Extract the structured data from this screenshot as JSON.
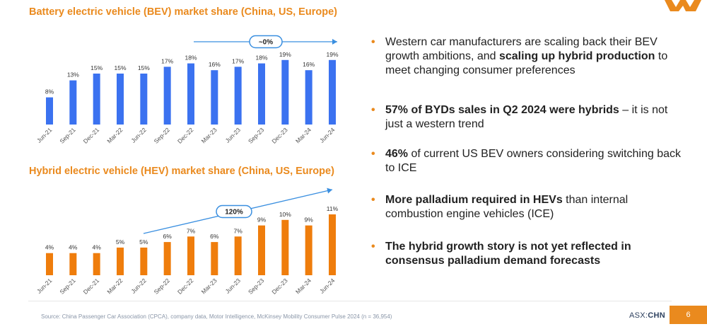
{
  "colors": {
    "bev_bar": "#3b72f0",
    "hev_bar": "#ef7d0c",
    "accent": "#ea8a1e",
    "arrow": "#3a8fe0"
  },
  "chart_data": [
    {
      "type": "bar",
      "title": "Battery electric vehicle (BEV) market share (China, US, Europe)",
      "categories": [
        "Jun-21",
        "Sep-21",
        "Dec-21",
        "Mar-22",
        "Jun-22",
        "Sep-22",
        "Dec-22",
        "Mar-23",
        "Jun-23",
        "Sep-23",
        "Dec-23",
        "Mar-24",
        "Jun-24"
      ],
      "values": [
        8,
        13,
        15,
        15,
        15,
        17,
        18,
        16,
        17,
        18,
        19,
        16,
        19
      ],
      "data_labels": [
        "8%",
        "13%",
        "15%",
        "15%",
        "15%",
        "17%",
        "18%",
        "16%",
        "17%",
        "18%",
        "19%",
        "16%",
        "19%"
      ],
      "annotation": "~0%",
      "ylim": [
        0,
        20
      ],
      "grid": false
    },
    {
      "type": "bar",
      "title": "Hybrid electric vehicle (HEV) market share (China, US, Europe)",
      "categories": [
        "Jun-21",
        "Sep-21",
        "Dec-21",
        "Mar-22",
        "Jun-22",
        "Sep-22",
        "Dec-22",
        "Mar-23",
        "Jun-23",
        "Sep-23",
        "Dec-23",
        "Mar-24",
        "Jun-24"
      ],
      "values": [
        4,
        4,
        4,
        5,
        5,
        6,
        7,
        6,
        7,
        9,
        10,
        9,
        11
      ],
      "data_labels": [
        "4%",
        "4%",
        "4%",
        "5%",
        "5%",
        "6%",
        "7%",
        "6%",
        "7%",
        "9%",
        "10%",
        "9%",
        "11%"
      ],
      "annotation": "120%",
      "ylim": [
        0,
        11
      ],
      "grid": false
    }
  ],
  "bullets": [
    {
      "pre": "Western car manufacturers are scaling back their BEV growth ambitions, and ",
      "bold": "scaling up hybrid production",
      "post": " to meet changing consumer preferences"
    },
    {
      "pre": "",
      "bold": "57% of BYDs sales in Q2 2024 were hybrids",
      "post": " – it is not just a western trend"
    },
    {
      "pre": "",
      "bold": "46%",
      "post": " of current US BEV owners considering switching back to ICE"
    },
    {
      "pre": "",
      "bold": "More palladium required in HEVs",
      "post": " than internal combustion engine vehicles (ICE)"
    },
    {
      "pre": "",
      "bold": "The hybrid growth story is not yet reflected in consensus palladium demand forecasts",
      "post": ""
    }
  ],
  "bullet_marker": "•",
  "footer": {
    "source": "Source: China Passenger Car Association (CPCA), company data, Motor Intelligence, McKinsey Mobility Consumer Pulse 2024 (n = 36,954)",
    "ticker_prefix": "ASX:",
    "ticker_symbol": "CHN",
    "page_number": "6"
  }
}
